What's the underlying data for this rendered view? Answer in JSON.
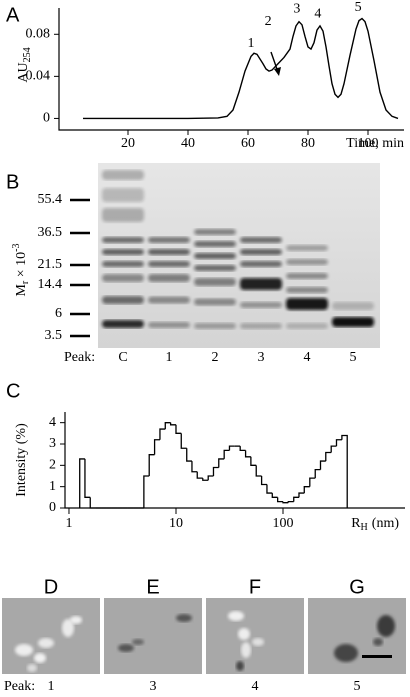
{
  "chart_data": [
    {
      "type": "line",
      "panel": "A",
      "y_label": "AU",
      "y_label_sub": "254",
      "x_label": "Time, min",
      "color": "#000000",
      "x": [
        5,
        20,
        40,
        50,
        53,
        55,
        57,
        59,
        61,
        62,
        63,
        65,
        66,
        67,
        68,
        70,
        72,
        74,
        75,
        76,
        77,
        78,
        79,
        80,
        81,
        82,
        83,
        84,
        85,
        86,
        87,
        88,
        89,
        90,
        91,
        92,
        94,
        96,
        97,
        98,
        99,
        100,
        102,
        104,
        106,
        108,
        110
      ],
      "values": [
        0,
        0,
        0,
        0.0005,
        0.002,
        0.008,
        0.025,
        0.045,
        0.059,
        0.062,
        0.061,
        0.052,
        0.047,
        0.045,
        0.046,
        0.052,
        0.058,
        0.066,
        0.078,
        0.088,
        0.092,
        0.089,
        0.078,
        0.068,
        0.066,
        0.072,
        0.084,
        0.088,
        0.083,
        0.068,
        0.05,
        0.033,
        0.023,
        0.02,
        0.023,
        0.033,
        0.06,
        0.085,
        0.093,
        0.095,
        0.092,
        0.083,
        0.055,
        0.025,
        0.008,
        0.002,
        0
      ],
      "xlim": [
        -3,
        112
      ],
      "ylim": [
        -0.011,
        0.105
      ],
      "xticks": [
        20,
        40,
        60,
        80,
        100
      ],
      "yticks": [
        0,
        0.04,
        0.08
      ],
      "annotations": [
        {
          "text": "1",
          "x": 61,
          "y": 0.071
        },
        {
          "text": "2",
          "x": 66.7,
          "y": 0.092
        },
        {
          "text": "3",
          "x": 76.3,
          "y": 0.104
        },
        {
          "text": "4",
          "x": 83.3,
          "y": 0.099
        },
        {
          "text": "5",
          "x": 96.7,
          "y": 0.105
        }
      ]
    },
    {
      "type": "histogram",
      "panel": "C",
      "y_label": "Intensity (%)",
      "x_label": "R",
      "x_label_sub": "H",
      "x_label_unit": "(nm)",
      "log_x": true,
      "color": "#000000",
      "bins": [
        1.26,
        1.41,
        1.58,
        1.78,
        2.0,
        2.24,
        2.51,
        2.82,
        3.16,
        3.55,
        3.98,
        4.47,
        5.01,
        5.62,
        6.31,
        7.08,
        7.94,
        8.91,
        10,
        11.2,
        12.6,
        14.1,
        15.8,
        17.8,
        20.0,
        22.4,
        25.1,
        28.2,
        31.6,
        35.5,
        39.8,
        44.7,
        50.1,
        56.2,
        63.1,
        70.8,
        79.4,
        89.1,
        100,
        112,
        126,
        141,
        158,
        178,
        200,
        224,
        251,
        282,
        316,
        355,
        398
      ],
      "counts": [
        2.3,
        0.5,
        0,
        0,
        0,
        0,
        0,
        0,
        0,
        0,
        0,
        0,
        1.5,
        2.5,
        3.2,
        3.7,
        4.0,
        3.9,
        3.5,
        2.8,
        2.2,
        1.7,
        1.4,
        1.3,
        1.5,
        1.9,
        2.3,
        2.7,
        2.9,
        2.9,
        2.7,
        2.4,
        2.0,
        1.5,
        1.1,
        0.7,
        0.5,
        0.3,
        0.25,
        0.3,
        0.5,
        0.7,
        1.0,
        1.4,
        1.8,
        2.2,
        2.6,
        2.9,
        3.2,
        3.4
      ],
      "xlim": [
        0.918,
        1380
      ],
      "ylim": [
        0,
        4.5
      ],
      "xticks": [
        1,
        10,
        100
      ],
      "yticks": [
        0,
        1,
        2,
        3,
        4
      ]
    }
  ],
  "gel": {
    "panel": "B",
    "y_label": "M",
    "y_label_sub": "r",
    "y_label_mid": " × 10",
    "y_label_sup": "-3",
    "markers": [
      "55.4",
      "36.5",
      "21.5",
      "14.4",
      "6",
      "3.5"
    ],
    "lane_title": "Peak:",
    "lanes": [
      "C",
      "1",
      "2",
      "3",
      "4",
      "5"
    ]
  },
  "micrographs": {
    "row_title": "Peak:",
    "panels": [
      {
        "label": "D",
        "peak": "1"
      },
      {
        "label": "E",
        "peak": "3"
      },
      {
        "label": "F",
        "peak": "4"
      },
      {
        "label": "G",
        "peak": "5"
      }
    ]
  }
}
